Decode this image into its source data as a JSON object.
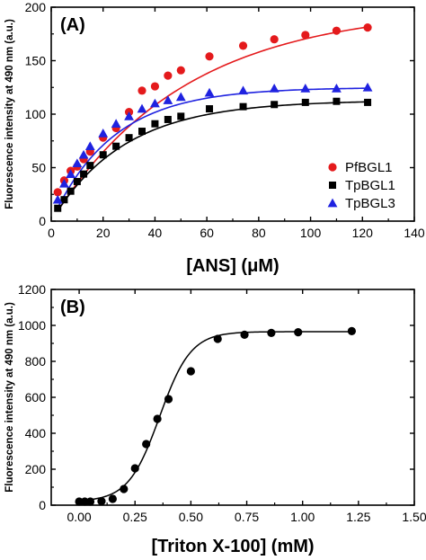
{
  "chart_data": [
    {
      "type": "scatter",
      "panel_label": "(A)",
      "xlabel": "[ANS] (μM)",
      "ylabel": "Fluorescence intensity at 490 nm (a.u.)",
      "xlim": [
        0,
        140
      ],
      "ylim": [
        0,
        200
      ],
      "xticks": [
        0,
        20,
        40,
        60,
        80,
        100,
        120,
        140
      ],
      "yticks": [
        0,
        50,
        100,
        150,
        200
      ],
      "legend_position": "bottom-right",
      "series": [
        {
          "name": "PfBGL1",
          "marker": "circle",
          "color": "#e41a1c",
          "x": [
            2.5,
            5,
            7.5,
            10,
            12.5,
            15,
            20,
            25,
            30,
            35,
            40,
            45,
            50,
            61,
            74,
            86,
            98,
            110,
            122
          ],
          "y": [
            27,
            38,
            47,
            51,
            58,
            65,
            78,
            87,
            102,
            122,
            126,
            136,
            141,
            154,
            164,
            170,
            174,
            178,
            181
          ]
        },
        {
          "name": "TpBGL1",
          "marker": "square",
          "color": "#000000",
          "x": [
            2.5,
            5,
            7.5,
            10,
            12.5,
            15,
            20,
            25,
            30,
            35,
            40,
            45,
            50,
            61,
            74,
            86,
            98,
            110,
            122
          ],
          "y": [
            12,
            20,
            28,
            37,
            44,
            52,
            62,
            70,
            78,
            84,
            91,
            95,
            98,
            105,
            107,
            109,
            111,
            112,
            111
          ]
        },
        {
          "name": "TpBGL3",
          "marker": "triangle",
          "color": "#1f22e0",
          "x": [
            2.5,
            5,
            7.5,
            10,
            12.5,
            15,
            20,
            25,
            30,
            35,
            40,
            45,
            50,
            61,
            74,
            86,
            98,
            110,
            122
          ],
          "y": [
            20,
            35,
            44,
            54,
            62,
            70,
            82,
            91,
            98,
            105,
            110,
            113,
            116,
            120,
            122,
            124,
            124,
            124,
            125
          ]
        }
      ],
      "fits": [
        {
          "color": "#e41a1c",
          "vmax": 200,
          "k": 0.0195
        },
        {
          "color": "#000000",
          "vmax": 113,
          "k": 0.0355
        },
        {
          "color": "#1f22e0",
          "vmax": 125,
          "k": 0.042
        }
      ]
    },
    {
      "type": "scatter",
      "panel_label": "(B)",
      "xlabel": "[Triton X-100] (mM)",
      "ylabel": "Fluorescence intensity at 490 nm (a.u.)",
      "xlim": [
        -0.125,
        1.5
      ],
      "ylim": [
        0,
        1200
      ],
      "xticks": [
        "0.00",
        "0.25",
        "0.50",
        "0.75",
        "1.00",
        "1.25",
        "1.50"
      ],
      "yticks": [
        0,
        200,
        400,
        600,
        800,
        1000,
        1200
      ],
      "series": [
        {
          "marker": "circle",
          "color": "#000000",
          "x": [
            0.0,
            0.025,
            0.05,
            0.1,
            0.15,
            0.2,
            0.25,
            0.3,
            0.35,
            0.4,
            0.5,
            0.62,
            0.74,
            0.86,
            0.98,
            1.22
          ],
          "y": [
            20,
            20,
            20,
            22,
            35,
            90,
            205,
            340,
            480,
            590,
            745,
            925,
            948,
            958,
            962,
            968
          ]
        }
      ],
      "fit": {
        "color": "#000000",
        "bottom": 20,
        "top": 965,
        "x50": 0.36,
        "slope": 0.07
      }
    }
  ]
}
